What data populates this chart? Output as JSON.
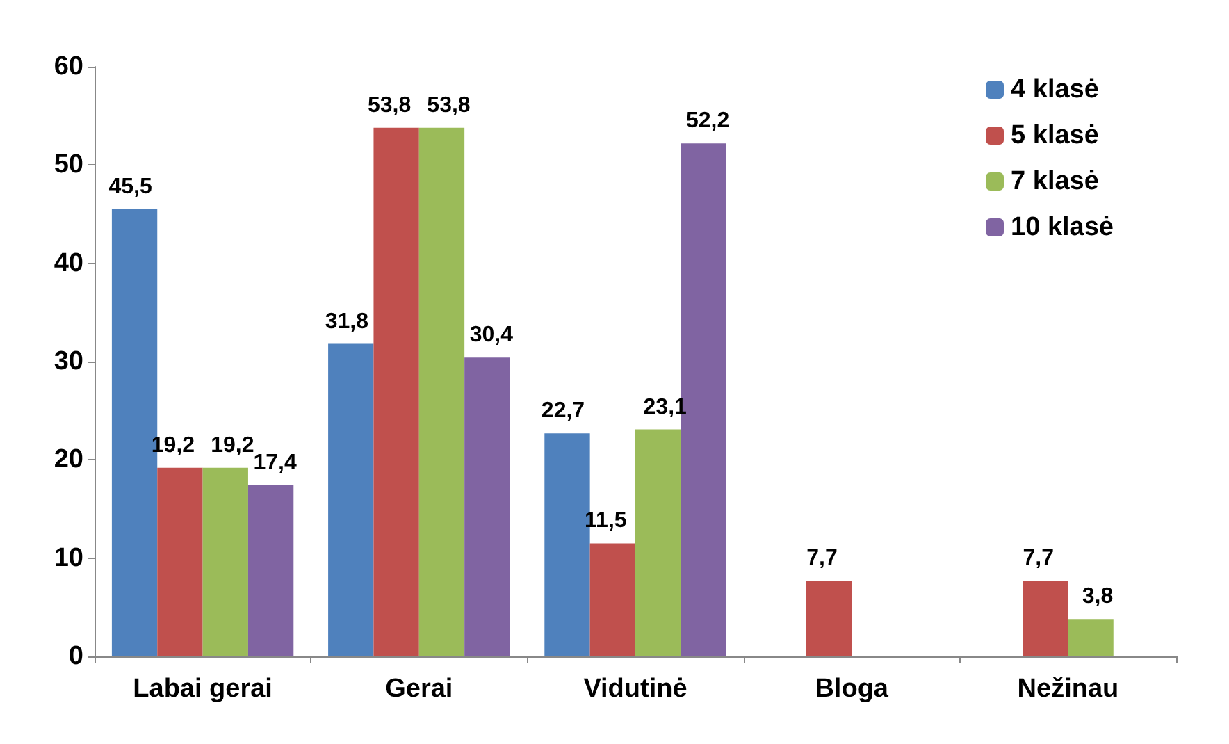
{
  "chart_data": {
    "type": "bar",
    "categories": [
      "Labai gerai",
      "Gerai",
      "Vidutinė",
      "Bloga",
      "Nežinau"
    ],
    "series": [
      {
        "name": "4 klasė",
        "color": "#4f81bd",
        "values": [
          45.5,
          31.8,
          22.7,
          null,
          null
        ],
        "value_labels": [
          "45,5",
          "31,8",
          "22,7",
          null,
          null
        ]
      },
      {
        "name": "5 klasė",
        "color": "#c0504d",
        "values": [
          19.2,
          53.8,
          11.5,
          7.7,
          7.7
        ],
        "value_labels": [
          "19,2",
          "53,8",
          "11,5",
          "7,7",
          "7,7"
        ]
      },
      {
        "name": "7 klasė",
        "color": "#9bbb59",
        "values": [
          19.2,
          53.8,
          23.1,
          null,
          3.8
        ],
        "value_labels": [
          "19,2",
          "53,8",
          "23,1",
          null,
          "3,8"
        ]
      },
      {
        "name": "10 klasė",
        "color": "#8064a2",
        "values": [
          17.4,
          30.4,
          52.2,
          null,
          null
        ],
        "value_labels": [
          "17,4",
          "30,4",
          "52,2",
          null,
          null
        ]
      }
    ],
    "ylim": [
      0,
      60
    ],
    "yticks": [
      0,
      10,
      20,
      30,
      40,
      50,
      60
    ],
    "grid": false,
    "legend": "top right"
  }
}
